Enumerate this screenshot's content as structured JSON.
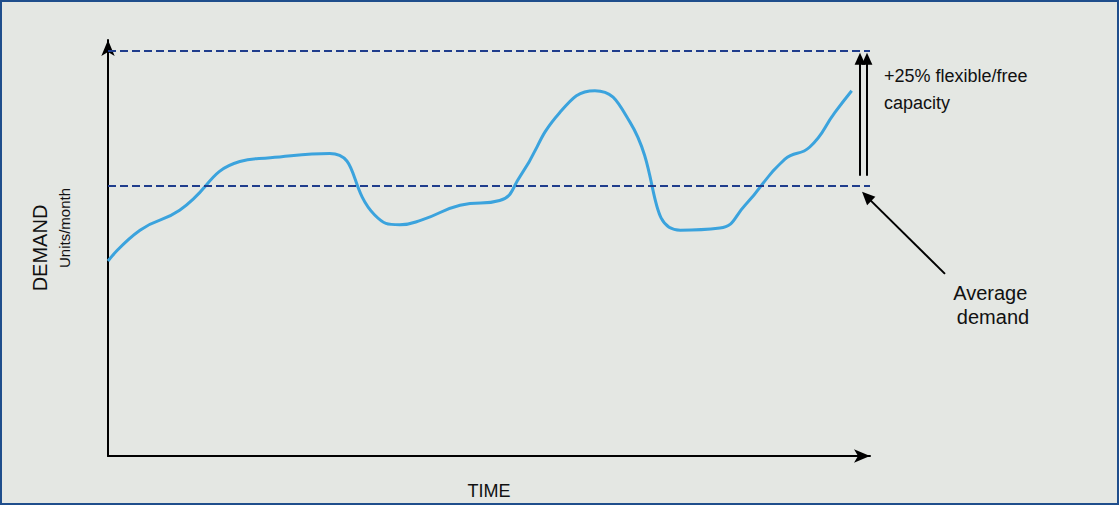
{
  "chart_data": {
    "type": "line",
    "x": [
      0,
      4.2,
      9.4,
      17.3,
      21.3,
      29.1,
      35.0,
      38.3,
      41.2,
      46.2,
      51.4,
      54.1,
      59.3,
      63.9,
      68.5,
      75.1,
      80.3,
      83.6,
      88.8,
      92.1,
      95.4,
      97.6
    ],
    "values": [
      86.1,
      91.8,
      95.5,
      104.5,
      105.2,
      106.0,
      94.6,
      92.8,
      93.7,
      96.4,
      97.3,
      101.8,
      113.6,
      117.6,
      111.8,
      91.8,
      92.2,
      96.4,
      104.9,
      107.2,
      113.6,
      117.6
    ],
    "color": "#3ba3dd",
    "line_style": "solid",
    "marker": "none",
    "xlim": [
      0,
      100
    ],
    "ylim": [
      50,
      127
    ],
    "tick_labels": false,
    "grid": false,
    "x_label": "TIME",
    "y_label": "DEMAND",
    "y_unit": "Units/month",
    "reference_lines": [
      {
        "value": 100,
        "label": "Average demand",
        "color": "#1f3d8c",
        "line_style": "dashed"
      },
      {
        "value": 125,
        "color": "#1f3d8c",
        "line_style": "dashed"
      }
    ],
    "annotation": "+25% flexible/free capacity"
  }
}
